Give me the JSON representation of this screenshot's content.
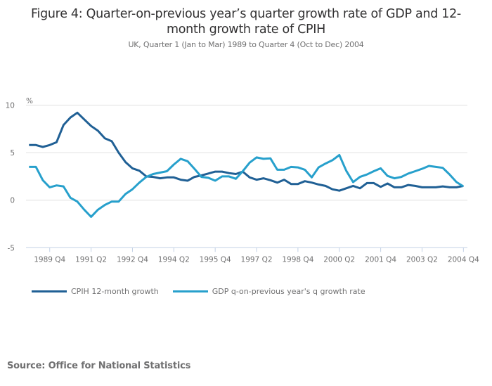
{
  "chart_data": {
    "type": "line",
    "title": "Figure 4: Quarter-on-previous year’s quarter growth rate of GDP and 12-month growth rate of CPIH",
    "title_lines": [
      "Figure 4: Quarter-on-previous year’s quarter growth rate of GDP and 12-",
      "month growth rate of CPIH"
    ],
    "subtitle": "UK, Quarter 1 (Jan to Mar) 1989 to Quarter 4 (Oct to Dec) 2004",
    "ylabel": "%",
    "xlabel": "",
    "ylim": [
      -5,
      10
    ],
    "yticks": [
      -5,
      0,
      5,
      10
    ],
    "grid": true,
    "legend_position": "bottom-left",
    "x_start": "1989 Q1",
    "x_end": "2004 Q4",
    "n_points": 64,
    "xtick_labels": [
      {
        "index": 3,
        "label": "1989 Q4"
      },
      {
        "index": 9,
        "label": "1991 Q2"
      },
      {
        "index": 15,
        "label": "1992 Q4"
      },
      {
        "index": 21,
        "label": "1994 Q2"
      },
      {
        "index": 27,
        "label": "1995 Q4"
      },
      {
        "index": 33,
        "label": "1997 Q2"
      },
      {
        "index": 39,
        "label": "1998 Q4"
      },
      {
        "index": 45,
        "label": "2000 Q2"
      },
      {
        "index": 51,
        "label": "2001 Q4"
      },
      {
        "index": 57,
        "label": "2003 Q2"
      },
      {
        "index": 63,
        "label": "2004 Q4"
      }
    ],
    "series": [
      {
        "name": "CPIH 12-month growth",
        "color": "#206095",
        "values": [
          5.8,
          5.8,
          5.6,
          5.8,
          6.1,
          7.9,
          8.7,
          9.2,
          8.5,
          7.8,
          7.3,
          6.5,
          6.2,
          5.0,
          4.0,
          3.35,
          3.1,
          2.5,
          2.45,
          2.3,
          2.4,
          2.4,
          2.15,
          2.05,
          2.45,
          2.6,
          2.8,
          3.0,
          3.0,
          2.85,
          2.75,
          3.0,
          2.4,
          2.15,
          2.3,
          2.1,
          1.85,
          2.15,
          1.7,
          1.7,
          2.0,
          1.85,
          1.65,
          1.5,
          1.15,
          1.0,
          1.25,
          1.5,
          1.25,
          1.8,
          1.8,
          1.4,
          1.75,
          1.35,
          1.35,
          1.6,
          1.5,
          1.35,
          1.35,
          1.35,
          1.45,
          1.35,
          1.35,
          1.5
        ]
      },
      {
        "name": "GDP q-on-previous year's q growth rate",
        "color": "#27a0cc",
        "values": [
          3.5,
          3.5,
          2.1,
          1.35,
          1.55,
          1.45,
          0.25,
          -0.15,
          -1.0,
          -1.75,
          -1.0,
          -0.5,
          -0.15,
          -0.15,
          0.65,
          1.15,
          1.85,
          2.45,
          2.75,
          2.9,
          3.05,
          3.75,
          4.35,
          4.1,
          3.3,
          2.45,
          2.35,
          2.05,
          2.5,
          2.5,
          2.25,
          3.05,
          3.95,
          4.5,
          4.35,
          4.4,
          3.2,
          3.2,
          3.5,
          3.45,
          3.2,
          2.4,
          3.45,
          3.85,
          4.2,
          4.75,
          3.1,
          1.9,
          2.45,
          2.7,
          3.05,
          3.35,
          2.55,
          2.3,
          2.45,
          2.8,
          3.05,
          3.3,
          3.6,
          3.5,
          3.4,
          2.7,
          1.9,
          1.45
        ]
      }
    ]
  },
  "footer": {
    "source": "Source: Office for National Statistics"
  }
}
